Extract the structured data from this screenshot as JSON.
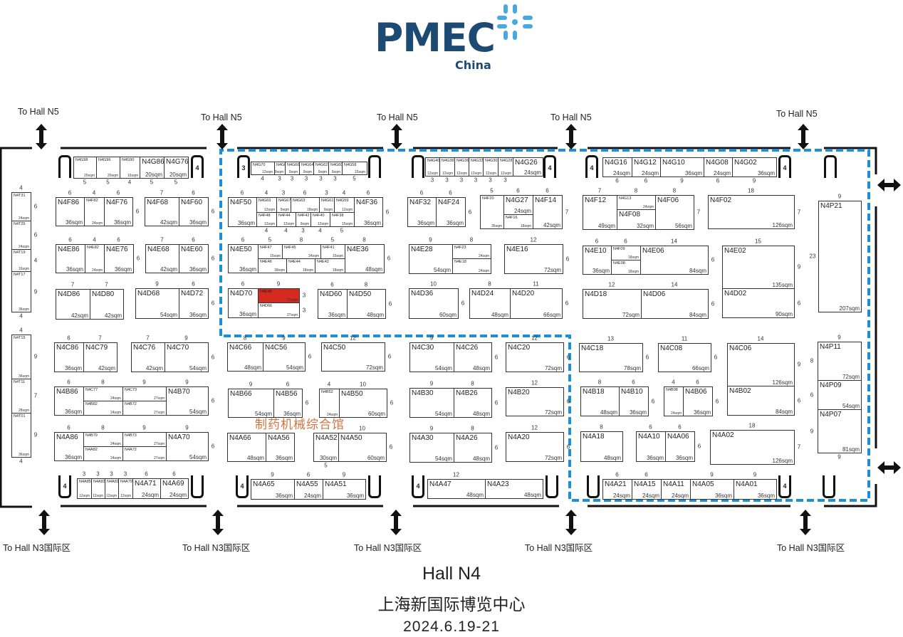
{
  "logo": {
    "brand": "PMEC",
    "sub": "China",
    "brand_color": "#1d4a72",
    "mark_color": "#4aa8e0"
  },
  "to_north": [
    "To Hall N5",
    "To Hall N5",
    "To Hall N5",
    "To Hall N5",
    "To Hall N5"
  ],
  "to_south": [
    "To Hall N3国际区",
    "To Hall N3国际区",
    "To Hall N3国际区",
    "To Hall N3国际区",
    "To Hall N3国际区"
  ],
  "pavilion_label": "制药机械综合馆",
  "pavilion_border_color": "#1d8fd6",
  "highlight_color": "#d42a1f",
  "footer": {
    "hall": "Hall N4",
    "venue": "上海新国际博览中心",
    "dates": "2024.6.19-21"
  },
  "doors": [
    "",
    "4",
    "3",
    "",
    "",
    "4",
    "4",
    "4",
    "",
    "4",
    "",
    "4",
    "",
    "4",
    "",
    "",
    "4",
    ""
  ],
  "booths": [
    {
      "id": "N4G98",
      "area": "20sqm",
      "w": "5",
      "d": "4"
    },
    {
      "id": "N4G96",
      "area": "20sqm",
      "w": "5",
      "d": "4"
    },
    {
      "id": "N4G90",
      "area": "16sqm",
      "w": "4",
      "d": "4"
    },
    {
      "id": "N4G86",
      "area": "20sqm",
      "w": "5",
      "d": "4"
    },
    {
      "id": "N4G76",
      "area": "20sqm",
      "w": "5",
      "d": "4"
    },
    {
      "id": "N4T31",
      "area": "24sqm",
      "w": "4",
      "d": "6"
    },
    {
      "id": "N4T25",
      "area": "24sqm",
      "w": "4",
      "d": "6"
    },
    {
      "id": "N4T19",
      "area": "16sqm",
      "w": "4",
      "d": "4"
    },
    {
      "id": "N4T17",
      "area": "36sqm",
      "w": "4",
      "d": "9"
    },
    {
      "id": "N4T15",
      "area": "36sqm",
      "w": "4",
      "d": "9"
    },
    {
      "id": "N4T11",
      "area": "28sqm",
      "w": "4",
      "d": "7"
    },
    {
      "id": "N4T01",
      "area": "36sqm",
      "w": "4",
      "d": "9"
    },
    {
      "id": "N4F86",
      "area": "36sqm",
      "w": "6",
      "d": "6"
    },
    {
      "id": "N4F82",
      "area": "24sqm",
      "w": "4",
      "d": "6"
    },
    {
      "id": "N4F76",
      "area": "36sqm",
      "w": "6",
      "d": "6"
    },
    {
      "id": "N4F68",
      "area": "42sqm",
      "w": "7",
      "d": "6"
    },
    {
      "id": "N4F60",
      "area": "36sqm",
      "w": "6",
      "d": "6"
    },
    {
      "id": "N4E86",
      "area": "36sqm",
      "w": "6",
      "d": "6"
    },
    {
      "id": "N4E82",
      "area": "24sqm",
      "w": "4",
      "d": "6"
    },
    {
      "id": "N4E76",
      "area": "36sqm",
      "w": "6",
      "d": "6"
    },
    {
      "id": "N4E68",
      "area": "42sqm",
      "w": "7",
      "d": "6"
    },
    {
      "id": "N4E60",
      "area": "36sqm",
      "w": "6",
      "d": "6"
    },
    {
      "id": "N4D86",
      "area": "42sqm",
      "w": "7",
      "d": "6"
    },
    {
      "id": "N4D80",
      "area": "42sqm",
      "w": "7",
      "d": "6"
    },
    {
      "id": "N4D68",
      "area": "54sqm",
      "w": "9",
      "d": "6"
    },
    {
      "id": "N4D72",
      "area": "36sqm",
      "w": "6",
      "d": "6"
    },
    {
      "id": "N4C86",
      "area": "36sqm",
      "w": "6",
      "d": "6"
    },
    {
      "id": "N4C79",
      "area": "42sqm",
      "w": "7",
      "d": "6"
    },
    {
      "id": "N4C76",
      "area": "42sqm",
      "w": "7",
      "d": "6"
    },
    {
      "id": "N4C70",
      "area": "54sqm",
      "w": "9",
      "d": "6"
    },
    {
      "id": "N4B86",
      "area": "36sqm",
      "w": "6",
      "d": "6"
    },
    {
      "id": "N4C77",
      "area": "24sqm",
      "w": "8",
      "d": "3"
    },
    {
      "id": "N4B82",
      "area": "24sqm",
      "w": "8",
      "d": "3"
    },
    {
      "id": "N4C73",
      "area": "27sqm",
      "w": "9",
      "d": "3"
    },
    {
      "id": "N4B72",
      "area": "27sqm",
      "w": "9",
      "d": "3"
    },
    {
      "id": "N4B70",
      "area": "54sqm",
      "w": "9",
      "d": "6"
    },
    {
      "id": "N4A86",
      "area": "36sqm",
      "w": "6",
      "d": "6"
    },
    {
      "id": "N4B79",
      "area": "24sqm",
      "w": "8",
      "d": "3"
    },
    {
      "id": "N4A82",
      "area": "24sqm",
      "w": "8",
      "d": "3"
    },
    {
      "id": "N4B73",
      "area": "27sqm",
      "w": "9",
      "d": "3"
    },
    {
      "id": "N4A72",
      "area": "27sqm",
      "w": "9",
      "d": "3"
    },
    {
      "id": "N4A70",
      "area": "54sqm",
      "w": "9",
      "d": "6"
    },
    {
      "id": "N4A85",
      "area": "12sqm",
      "w": "3",
      "d": "4"
    },
    {
      "id": "N4A83",
      "area": "12sqm",
      "w": "3",
      "d": "4"
    },
    {
      "id": "N4A81",
      "area": "12sqm",
      "w": "3",
      "d": "4"
    },
    {
      "id": "N4A79",
      "area": "12sqm",
      "w": "3",
      "d": "4"
    },
    {
      "id": "N4A71",
      "area": "24sqm",
      "w": "6",
      "d": "4"
    },
    {
      "id": "N4A69",
      "area": "24sqm",
      "w": "6",
      "d": "4"
    },
    {
      "id": "N4G70",
      "area": "12sqm",
      "w": "4",
      "d": "3"
    },
    {
      "id": "N4G68",
      "area": "9sqm",
      "w": "3",
      "d": "3"
    },
    {
      "id": "N4G66",
      "area": "9sqm",
      "w": "3",
      "d": "3"
    },
    {
      "id": "N4G64",
      "area": "9sqm",
      "w": "3",
      "d": "3"
    },
    {
      "id": "N4G62",
      "area": "9sqm",
      "w": "3",
      "d": "3"
    },
    {
      "id": "N4G60",
      "area": "9sqm",
      "w": "3",
      "d": "3"
    },
    {
      "id": "N4G58",
      "area": "15sqm",
      "w": "5",
      "d": "3"
    },
    {
      "id": "N4F50",
      "area": "36sqm",
      "w": "6",
      "d": "6"
    },
    {
      "id": "N4G69",
      "area": "12sqm",
      "w": "4",
      "d": "3"
    },
    {
      "id": "N4G67",
      "area": "9sqm",
      "w": "3",
      "d": "3"
    },
    {
      "id": "N4G63",
      "area": "18sqm",
      "w": "6",
      "d": "3"
    },
    {
      "id": "N4G61",
      "area": "9sqm",
      "w": "3",
      "d": "3"
    },
    {
      "id": "N4G59",
      "area": "12sqm",
      "w": "4",
      "d": "3"
    },
    {
      "id": "N4F48",
      "area": "12sqm",
      "w": "4",
      "d": "3"
    },
    {
      "id": "N4F44",
      "area": "12sqm",
      "w": "4",
      "d": "3"
    },
    {
      "id": "N4F42",
      "area": "9sqm",
      "w": "3",
      "d": "3"
    },
    {
      "id": "N4F40",
      "area": "12sqm",
      "w": "4",
      "d": "3"
    },
    {
      "id": "N4F38",
      "area": "15sqm",
      "w": "5",
      "d": "3"
    },
    {
      "id": "N4F36",
      "area": "36sqm",
      "w": "6",
      "d": "6"
    },
    {
      "id": "N4E50",
      "area": "36sqm",
      "w": "6",
      "d": "6"
    },
    {
      "id": "N4F47",
      "area": "15sqm",
      "w": "5",
      "d": "3"
    },
    {
      "id": "N4F45",
      "area": "24sqm",
      "w": "8",
      "d": "3"
    },
    {
      "id": "N4F41",
      "area": "15sqm",
      "w": "5",
      "d": "3"
    },
    {
      "id": "N4E46",
      "area": "18sqm",
      "w": "6",
      "d": "3"
    },
    {
      "id": "N4E44",
      "area": "18sqm",
      "w": "6",
      "d": "3"
    },
    {
      "id": "N4E42",
      "area": "18sqm",
      "w": "6",
      "d": "3"
    },
    {
      "id": "N4E36",
      "area": "48sqm",
      "w": "8",
      "d": "6"
    },
    {
      "id": "N4D70",
      "area": "36sqm",
      "w": "6",
      "d": "6"
    },
    {
      "id": "N4E48",
      "area": "27sqm",
      "w": "9",
      "d": "3"
    },
    {
      "id": "N4D66",
      "area": "27sqm",
      "w": "9",
      "d": "3"
    },
    {
      "id": "N4D60",
      "area": "36sqm",
      "w": "6",
      "d": "6"
    },
    {
      "id": "N4D50",
      "area": "48sqm",
      "w": "8",
      "d": "6"
    },
    {
      "id": "N4C66",
      "area": "48sqm",
      "w": "8",
      "d": "6"
    },
    {
      "id": "N4C56",
      "area": "54sqm",
      "w": "9",
      "d": "6"
    },
    {
      "id": "N4C50",
      "area": "72sqm",
      "w": "12",
      "d": "6"
    },
    {
      "id": "N4B66",
      "area": "54sqm",
      "w": "9",
      "d": "6"
    },
    {
      "id": "N4B56",
      "area": "36sqm",
      "w": "6",
      "d": "6"
    },
    {
      "id": "N4B52",
      "area": "24sqm",
      "w": "4",
      "d": "6"
    },
    {
      "id": "N4B50",
      "area": "60sqm",
      "w": "10",
      "d": "6"
    },
    {
      "id": "N4A66",
      "area": "48sqm",
      "w": "8",
      "d": "6"
    },
    {
      "id": "N4A56",
      "area": "36sqm",
      "w": "6",
      "d": "6"
    },
    {
      "id": "N4A52",
      "area": "30sqm",
      "w": "5",
      "d": "6"
    },
    {
      "id": "N4A50",
      "area": "60sqm",
      "w": "10",
      "d": "6"
    },
    {
      "id": "N4A65",
      "area": "36sqm",
      "w": "9",
      "d": "4"
    },
    {
      "id": "N4A55",
      "area": "24sqm",
      "w": "6",
      "d": "4"
    },
    {
      "id": "N4A51",
      "area": "36sqm",
      "w": "9",
      "d": "4"
    },
    {
      "id": "N4G40",
      "area": "12sqm",
      "w": "3",
      "d": "4"
    },
    {
      "id": "N4G38",
      "area": "12sqm",
      "w": "3",
      "d": "4"
    },
    {
      "id": "N4G36",
      "area": "12sqm",
      "w": "3",
      "d": "4"
    },
    {
      "id": "N4G32",
      "area": "12sqm",
      "w": "3",
      "d": "4"
    },
    {
      "id": "N4G30",
      "area": "12sqm",
      "w": "3",
      "d": "4"
    },
    {
      "id": "N4G28",
      "area": "12sqm",
      "w": "3",
      "d": "4"
    },
    {
      "id": "N4G26",
      "area": "24sqm",
      "w": "6",
      "d": "4"
    },
    {
      "id": "N4F32",
      "area": "36sqm",
      "w": "6",
      "d": "6"
    },
    {
      "id": "N4F24",
      "area": "36sqm",
      "w": "6",
      "d": "6"
    },
    {
      "id": "N4F20",
      "area": "35sqm",
      "w": "5",
      "d": "7"
    },
    {
      "id": "N4G27",
      "area": "24sqm",
      "w": "6",
      "d": "4"
    },
    {
      "id": "N4F16",
      "area": "18sqm",
      "w": "6",
      "d": "3"
    },
    {
      "id": "N4F14",
      "area": "42sqm",
      "w": "6",
      "d": "7"
    },
    {
      "id": "N4E28",
      "area": "54sqm",
      "w": "9",
      "d": "6"
    },
    {
      "id": "N4F23",
      "area": "24sqm",
      "w": "8",
      "d": "3"
    },
    {
      "id": "N4E18",
      "area": "24sqm",
      "w": "8",
      "d": "3"
    },
    {
      "id": "N4E16",
      "area": "72sqm",
      "w": "12",
      "d": "6"
    },
    {
      "id": "N4D36",
      "area": "60sqm",
      "w": "10",
      "d": "6"
    },
    {
      "id": "N4D24",
      "area": "48sqm",
      "w": "8",
      "d": "6"
    },
    {
      "id": "N4D20",
      "area": "66sqm",
      "w": "11",
      "d": "6"
    },
    {
      "id": "N4C30",
      "area": "54sqm",
      "w": "9",
      "d": "6"
    },
    {
      "id": "N4C26",
      "area": "48sqm",
      "w": "8",
      "d": "6"
    },
    {
      "id": "N4C20",
      "area": "72sqm",
      "w": "12",
      "d": "6"
    },
    {
      "id": "N4B30",
      "area": "54sqm",
      "w": "9",
      "d": "6"
    },
    {
      "id": "N4B26",
      "area": "48sqm",
      "w": "8",
      "d": "6"
    },
    {
      "id": "N4B20",
      "area": "72sqm",
      "w": "12",
      "d": "6"
    },
    {
      "id": "N4A30",
      "area": "54sqm",
      "w": "9",
      "d": "6"
    },
    {
      "id": "N4A26",
      "area": "48sqm",
      "w": "8",
      "d": "6"
    },
    {
      "id": "N4A20",
      "area": "72sqm",
      "w": "12",
      "d": "6"
    },
    {
      "id": "N4A47",
      "area": "48sqm",
      "w": "12",
      "d": "4"
    },
    {
      "id": "N4A23",
      "area": "48sqm",
      "w": "12",
      "d": "4"
    },
    {
      "id": "N4G16",
      "area": "24sqm",
      "w": "6",
      "d": "4"
    },
    {
      "id": "N4G12",
      "area": "24sqm",
      "w": "6",
      "d": "4"
    },
    {
      "id": "N4G10",
      "area": "36sqm",
      "w": "9",
      "d": "4"
    },
    {
      "id": "N4G08",
      "area": "24sqm",
      "w": "6",
      "d": "4"
    },
    {
      "id": "N4G02",
      "area": "36sqm",
      "w": "9",
      "d": "4"
    },
    {
      "id": "N4F12",
      "area": "49sqm",
      "w": "7",
      "d": "7"
    },
    {
      "id": "N4G13",
      "area": "24sqm",
      "w": "8",
      "d": "3"
    },
    {
      "id": "N4F08",
      "area": "32sqm",
      "w": "8",
      "d": "4"
    },
    {
      "id": "N4F06",
      "area": "56sqm",
      "w": "8",
      "d": "7"
    },
    {
      "id": "N4F02",
      "area": "126sqm",
      "w": "18",
      "d": "7"
    },
    {
      "id": "N4E10",
      "area": "36sqm",
      "w": "6",
      "d": "6"
    },
    {
      "id": "N4F09",
      "area": "18sqm",
      "w": "6",
      "d": "3"
    },
    {
      "id": "N4E08",
      "area": "18sqm",
      "w": "6",
      "d": "3"
    },
    {
      "id": "N4E06",
      "area": "84sqm",
      "w": "14",
      "d": "6"
    },
    {
      "id": "N4E02",
      "area": "135sqm",
      "w": "15",
      "d": "9"
    },
    {
      "id": "N4D02",
      "area": "90sqm",
      "w": "15",
      "d": "6"
    },
    {
      "id": "N4D18",
      "area": "72sqm",
      "w": "12",
      "d": "6"
    },
    {
      "id": "N4D06",
      "area": "84sqm",
      "w": "14",
      "d": "6"
    },
    {
      "id": "N4P21",
      "area": "207sqm",
      "w": "9",
      "d": "23"
    },
    {
      "id": "N4C18",
      "area": "78sqm",
      "w": "13",
      "d": "6"
    },
    {
      "id": "N4C08",
      "area": "66sqm",
      "w": "11",
      "d": "6"
    },
    {
      "id": "N4C06",
      "area": "126sqm",
      "w": "14",
      "d": "9"
    },
    {
      "id": "N4B02",
      "area": "84sqm",
      "w": "14",
      "d": "6"
    },
    {
      "id": "N4P11",
      "area": "72sqm",
      "w": "9",
      "d": "8"
    },
    {
      "id": "N4P09",
      "area": "54sqm",
      "w": "9",
      "d": "6"
    },
    {
      "id": "N4P07",
      "area": "81sqm",
      "w": "9",
      "d": "9"
    },
    {
      "id": "N4B18",
      "area": "48sqm",
      "w": "8",
      "d": "6"
    },
    {
      "id": "N4B10",
      "area": "36sqm",
      "w": "6",
      "d": "6"
    },
    {
      "id": "N4B08",
      "area": "24sqm",
      "w": "4",
      "d": "6"
    },
    {
      "id": "N4B06",
      "area": "36sqm",
      "w": "6",
      "d": "6"
    },
    {
      "id": "N4A18",
      "area": "48sqm",
      "w": "8",
      "d": "6"
    },
    {
      "id": "N4A10",
      "area": "36sqm",
      "w": "6",
      "d": "6"
    },
    {
      "id": "N4A06",
      "area": "36sqm",
      "w": "6",
      "d": "6"
    },
    {
      "id": "N4A02",
      "area": "126sqm",
      "w": "18",
      "d": "7"
    },
    {
      "id": "N4A21",
      "area": "24sqm",
      "w": "6",
      "d": "4"
    },
    {
      "id": "N4A15",
      "area": "24sqm",
      "w": "6",
      "d": "4"
    },
    {
      "id": "N4A11",
      "area": "24sqm",
      "w": "6",
      "d": "4"
    },
    {
      "id": "N4A05",
      "area": "36sqm",
      "w": "9",
      "d": "4"
    },
    {
      "id": "N4A01",
      "area": "36sqm",
      "w": "9",
      "d": "4"
    }
  ],
  "highlighted_booth": "N4E48"
}
